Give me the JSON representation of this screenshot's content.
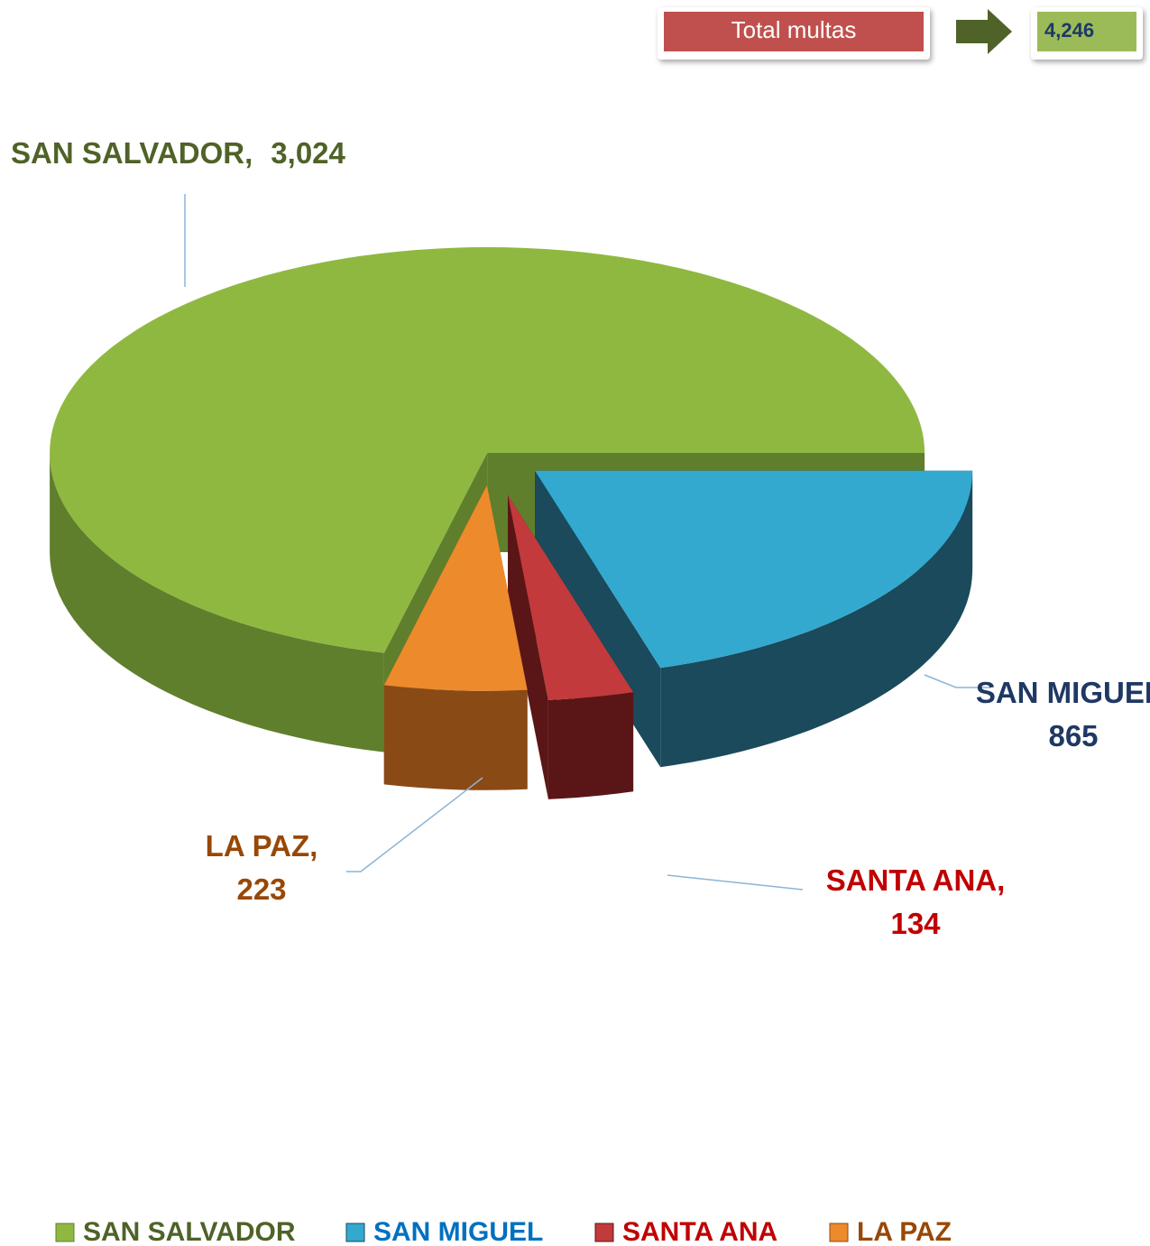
{
  "chart_data": {
    "type": "pie",
    "categories": [
      "SAN SALVADOR",
      "SAN MIGUEL",
      "SANTA ANA",
      "LA PAZ"
    ],
    "values": [
      3024,
      865,
      134,
      223
    ],
    "value_labels": [
      "3,024",
      "865",
      "134",
      "223"
    ],
    "data_label_separator": ",",
    "colors": [
      "#8fb841",
      "#33a9cf",
      "#c23a3b",
      "#ec8a2c"
    ],
    "side_colors": [
      "#5f7f2c",
      "#1a4a5b",
      "#5a1616",
      "#8a4a16"
    ],
    "label_colors": [
      "#4f6228",
      "#1f3864",
      "#c00000",
      "#984806"
    ],
    "legend_colors": [
      "#4f6228",
      "#0070c0",
      "#c00000",
      "#984806"
    ],
    "legend": "bottom",
    "total": {
      "label": "Total multas",
      "value": 4246,
      "value_label": "4,246"
    }
  }
}
